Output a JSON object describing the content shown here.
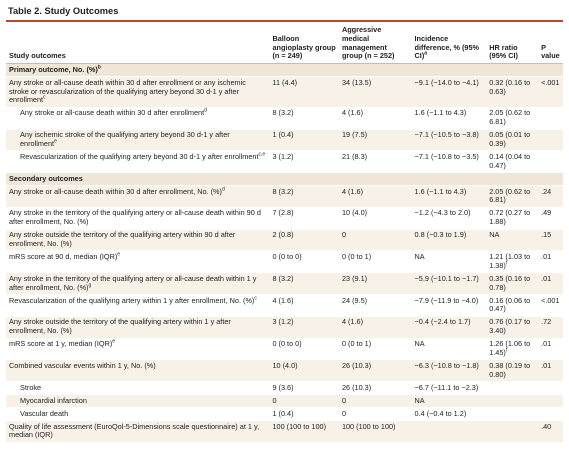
{
  "title": "Table 2. Study Outcomes",
  "headers": {
    "outcome": "Study outcomes",
    "balloon": "Balloon angioplasty group (n = 249)",
    "medical": "Aggressive medical management group (n = 252)",
    "diff": "Incidence difference, % (95% CI)",
    "diff_sup": "a",
    "hr": "HR ratio (95% CI)",
    "p": "P value"
  },
  "rows": [
    {
      "type": "section",
      "outcome": "Primary outcome, No. (%)",
      "sup": "b"
    },
    {
      "type": "data",
      "indent": false,
      "band": true,
      "outcome": "Any stroke or all-cause death within 30 d after enrollment or any ischemic stroke or revascularization of the qualifying artery beyond 30 d-1 y after enrollment",
      "sup": "c",
      "balloon": "11 (4.4)",
      "medical": "34 (13.5)",
      "diff": "−9.1 (−14.0 to −4.1)",
      "hr": "0.32 (0.16 to 0.63)",
      "p": "<.001"
    },
    {
      "type": "data",
      "indent": true,
      "band": false,
      "outcome": "Any stroke or all-cause death within 30 d after enrollment",
      "sup": "d",
      "balloon": "8 (3.2)",
      "medical": "4 (1.6)",
      "diff": "1.6 (−1.1 to 4.3)",
      "hr": "2.05 (0.62 to 6.81)",
      "p": ""
    },
    {
      "type": "data",
      "indent": true,
      "band": true,
      "outcome": "Any ischemic stroke of the qualifying artery beyond 30 d-1 y after enrollment",
      "sup": "e",
      "balloon": "1 (0.4)",
      "medical": "19 (7.5)",
      "diff": "−7.1 (−10.5 to −3.8)",
      "hr": "0.05 (0.01 to 0.39)",
      "p": ""
    },
    {
      "type": "data",
      "indent": true,
      "band": false,
      "outcome": "Revascularization of the qualifying artery beyond 30 d-1 y after enrollment",
      "sup": "c,e",
      "balloon": "3 (1.2)",
      "medical": "21 (8.3)",
      "diff": "−7.1 (−10.8 to −3.5)",
      "hr": "0.14 (0.04 to 0.47)",
      "p": ""
    },
    {
      "type": "section",
      "outcome": "Secondary outcomes",
      "sup": ""
    },
    {
      "type": "data",
      "indent": false,
      "band": true,
      "outcome": "Any stroke or all-cause death within 30 d after enrollment, No. (%)",
      "sup": "d",
      "balloon": "8 (3.2)",
      "medical": "4 (1.6)",
      "diff": "1.6 (−1.1 to 4.3)",
      "hr": "2.05 (0.62 to 6.81)",
      "p": ".24"
    },
    {
      "type": "data",
      "indent": false,
      "band": false,
      "outcome": "Any stroke in the territory of the qualifying artery or all-cause death within 90 d after enrollment, No. (%)",
      "sup": "",
      "balloon": "7 (2.8)",
      "medical": "10 (4.0)",
      "diff": "−1.2 (−4.3 to 2.0)",
      "hr": "0.72 (0.27 to 1.88)",
      "p": ".49"
    },
    {
      "type": "data",
      "indent": false,
      "band": true,
      "outcome": "Any stroke outside the territory of the qualifying artery within 90 d after enrollment, No. (%)",
      "sup": "",
      "balloon": "2 (0.8)",
      "medical": "0",
      "diff": "0.8 (−0.3 to 1.9)",
      "hr": "NA",
      "p": ".15"
    },
    {
      "type": "data",
      "indent": false,
      "band": false,
      "outcome": "mRS score at 90 d, median (IQR)",
      "sup": "e",
      "balloon": "0 (0 to 0)",
      "medical": "0 (0 to 1)",
      "diff": "NA",
      "hr": "1.21 (1.03 to 1.38)",
      "hr_sup": "f",
      "p": ".01"
    },
    {
      "type": "data",
      "indent": false,
      "band": true,
      "outcome": "Any stroke in the territory of the qualifying artery or all-cause death within 1 y after enrollment, No. (%)",
      "sup": "g",
      "balloon": "8 (3.2)",
      "medical": "23 (9.1)",
      "diff": "−5.9 (−10.1 to −1.7)",
      "hr": "0.35 (0.16 to 0.78)",
      "p": ".01"
    },
    {
      "type": "data",
      "indent": false,
      "band": false,
      "outcome": "Revascularization of the qualifying artery within 1 y after enrollment, No. (%)",
      "sup": "c",
      "balloon": "4 (1.6)",
      "medical": "24 (9.5)",
      "diff": "−7.9 (−11.9 to −4.0)",
      "hr": "0.16 (0.06 to 0.47)",
      "p": "<.001"
    },
    {
      "type": "data",
      "indent": false,
      "band": true,
      "outcome": "Any stroke outside the territory of the qualifying artery within 1 y after enrollment, No. (%)",
      "sup": "",
      "balloon": "3 (1.2)",
      "medical": "4 (1.6)",
      "diff": "−0.4 (−2.4 to 1.7)",
      "hr": "0.76 (0.17 to 3.40)",
      "p": ".72"
    },
    {
      "type": "data",
      "indent": false,
      "band": false,
      "outcome": "mRS score at 1 y, median (IQR)",
      "sup": "e",
      "balloon": "0 (0 to 0)",
      "medical": "0 (0 to 1)",
      "diff": "NA",
      "hr": "1.26 (1.06 to 1.45)",
      "hr_sup": "f",
      "p": ".01"
    },
    {
      "type": "data",
      "indent": false,
      "band": true,
      "outcome": "Combined vascular events within 1 y, No. (%)",
      "sup": "",
      "balloon": "10 (4.0)",
      "medical": "26 (10.3)",
      "diff": "−6.3 (−10.8 to −1.8)",
      "hr": "0.38 (0.19 to 0.80)",
      "p": ".01"
    },
    {
      "type": "data",
      "indent": true,
      "band": false,
      "outcome": "Stroke",
      "sup": "",
      "balloon": "9 (3.6)",
      "medical": "26 (10.3)",
      "diff": "−6.7 (−11.1 to −2.3)",
      "hr": "",
      "p": ""
    },
    {
      "type": "data",
      "indent": true,
      "band": true,
      "outcome": "Myocardial infarction",
      "sup": "",
      "balloon": "0",
      "medical": "0",
      "diff": "NA",
      "hr": "",
      "p": ""
    },
    {
      "type": "data",
      "indent": true,
      "band": false,
      "outcome": "Vascular death",
      "sup": "",
      "balloon": "1 (0.4)",
      "medical": "0",
      "diff": "0.4 (−0.4 to 1.2)",
      "hr": "",
      "p": ""
    },
    {
      "type": "data",
      "indent": false,
      "band": true,
      "outcome": "Quality of life assessment (EuroQol-5-Dimensions scale questionnaire) at 1 y, median (IQR)",
      "sup": "",
      "balloon": "100 (100 to 100)",
      "medical": "100 (100 to 100)",
      "diff": "",
      "hr": "",
      "p": ".40"
    }
  ]
}
